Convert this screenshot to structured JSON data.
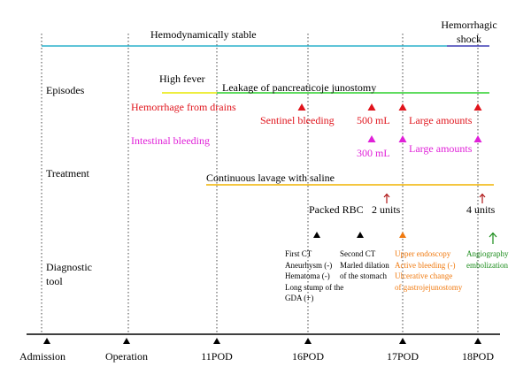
{
  "colors": {
    "stable_line": "#2ab0cc",
    "shock_line": "#3c3cb4",
    "leakage_line": "#2cd02c",
    "fever_line": "#e8e800",
    "lavage_line": "#f0b400",
    "hemorrhage": "#e0141c",
    "intestinal": "#e020d8",
    "endoscopy": "#f07a10",
    "angiography": "#1a8c1a",
    "rbc_arrow": "#b01818",
    "guide": "#444444",
    "axis": "#000000"
  },
  "timeline": {
    "labels": [
      "Admission",
      "Operation",
      "11POD",
      "16POD",
      "17POD",
      "18POD"
    ]
  },
  "rows": {
    "episodes": "Episodes",
    "treatment": "Treatment",
    "diagnostic_1": "Diagnostic",
    "diagnostic_2": "tool"
  },
  "status": {
    "stable": "Hemodynamically stable",
    "shock_1": "Hemorrhagic",
    "shock_2": "shock"
  },
  "episodes": {
    "high_fever": "High fever",
    "leakage": "Leakage of pancreaticoje junostomy",
    "hemorrhage_drains": "Hemorrhage from drains",
    "sentinel": "Sentinel bleeding",
    "bleed_500": "500 mL",
    "large_amounts_1": "Large amounts",
    "intestinal": "Intestinal bleeding",
    "bleed_300": "300 mL",
    "large_amounts_2": "Large amounts"
  },
  "treatment": {
    "lavage": "Continuous lavage with saline",
    "packed_rbc": "Packed RBC",
    "units_2": "2 units",
    "units_4": "4 units"
  },
  "diagnostic": {
    "first_ct": [
      "First CT",
      "Aneurhysm (-)",
      "Hematoma (-)",
      "Long stump of the",
      "GDA (+)"
    ],
    "second_ct": [
      "Second CT",
      "Marled dilation",
      "of the stomach"
    ],
    "endoscopy": [
      "Upper endoscopy",
      "Active bleeding (-)",
      "Ulcerative change",
      "of gastrojejunostomy"
    ],
    "angiography": [
      "Angiography",
      "embolization"
    ]
  }
}
